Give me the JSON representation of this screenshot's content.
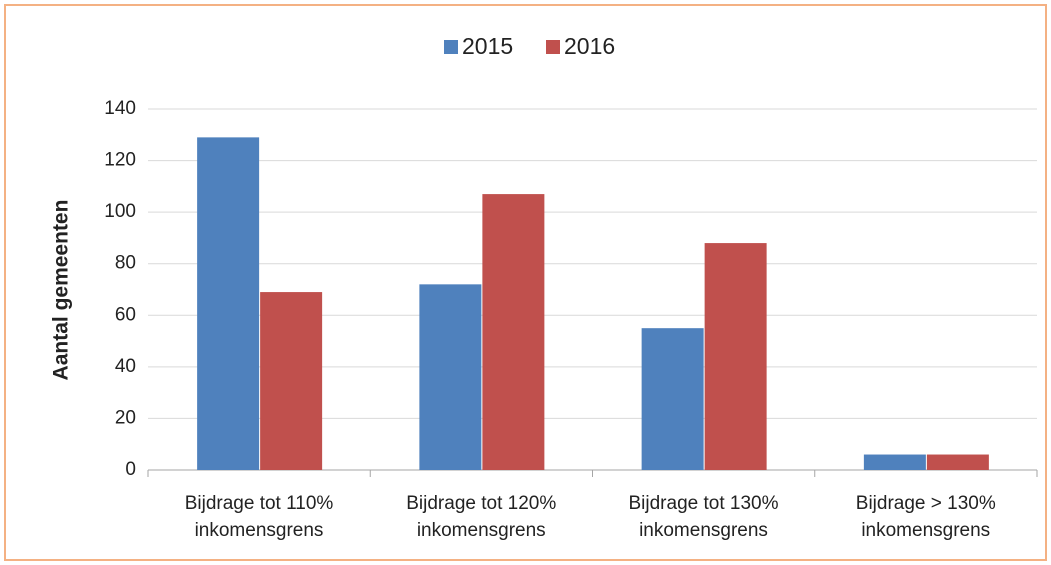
{
  "chart_data": {
    "type": "bar",
    "y_label": "Aantal gemeenten",
    "categories": [
      "Bijdrage tot 110%\ninkomensgrens",
      "Bijdrage tot 120%\ninkomensgrens",
      "Bijdrage tot 130%\ninkomensgrens",
      "Bijdrage > 130%\ninkomensgrens"
    ],
    "series": [
      {
        "name": "2015",
        "color": "#4f81bd",
        "values": [
          129,
          72,
          55,
          6
        ]
      },
      {
        "name": "2016",
        "color": "#c0504d",
        "values": [
          69,
          107,
          88,
          6
        ]
      }
    ],
    "ylim": [
      0,
      140
    ],
    "yticks": [
      0,
      20,
      40,
      60,
      80,
      100,
      120,
      140
    ],
    "grid": true,
    "legend": "top"
  }
}
